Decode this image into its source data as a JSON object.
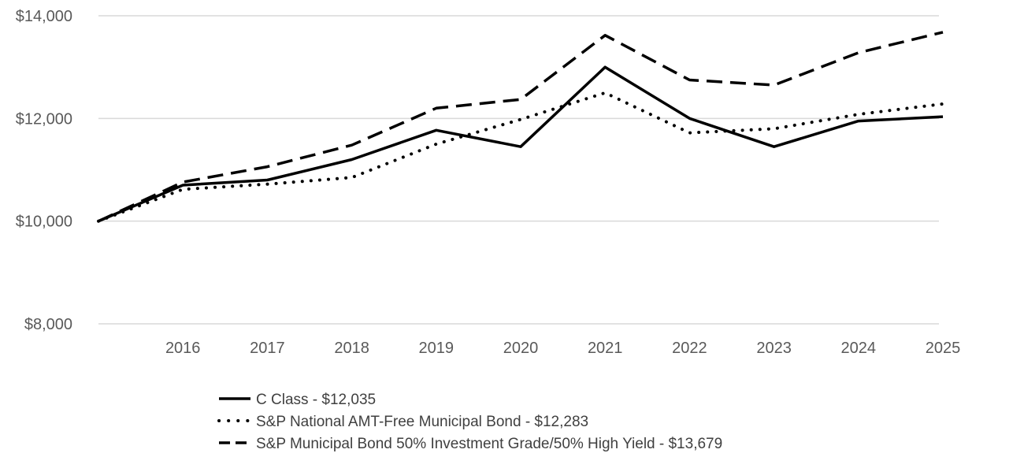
{
  "chart_data": {
    "type": "line",
    "title": "",
    "xlabel": "",
    "ylabel": "",
    "x": [
      2015,
      2016,
      2017,
      2018,
      2019,
      2020,
      2021,
      2022,
      2023,
      2024,
      2025
    ],
    "x_tick_labels": [
      "2016",
      "2017",
      "2018",
      "2019",
      "2020",
      "2021",
      "2022",
      "2023",
      "2024",
      "2025"
    ],
    "y_tick_values": [
      8000,
      10000,
      12000,
      14000
    ],
    "y_tick_labels": [
      "$8,000",
      "$10,000",
      "$12,000",
      "$14,000"
    ],
    "ylim": [
      8000,
      14000
    ],
    "grid": true,
    "legend_position": "bottom",
    "series": [
      {
        "name": "C Class - $12,035",
        "style": "solid",
        "color": "#000000",
        "values": [
          10000,
          10700,
          10800,
          11200,
          11770,
          11450,
          13000,
          12000,
          11450,
          11950,
          12035
        ]
      },
      {
        "name": "S&P National AMT-Free Municipal Bond - $12,283",
        "style": "dotted",
        "color": "#000000",
        "values": [
          10000,
          10620,
          10720,
          10850,
          11500,
          11980,
          12500,
          11720,
          11800,
          12080,
          12283
        ]
      },
      {
        "name": "S&P Municipal Bond 50% Investment Grade/50% High Yield - $13,679",
        "style": "dashed",
        "color": "#000000",
        "values": [
          10000,
          10760,
          11060,
          11480,
          12200,
          12370,
          13620,
          12750,
          12650,
          13280,
          13679
        ]
      }
    ],
    "colors": {
      "grid": "#d9d9d9",
      "tick_text": "#595959",
      "legend_text": "#404040"
    }
  }
}
